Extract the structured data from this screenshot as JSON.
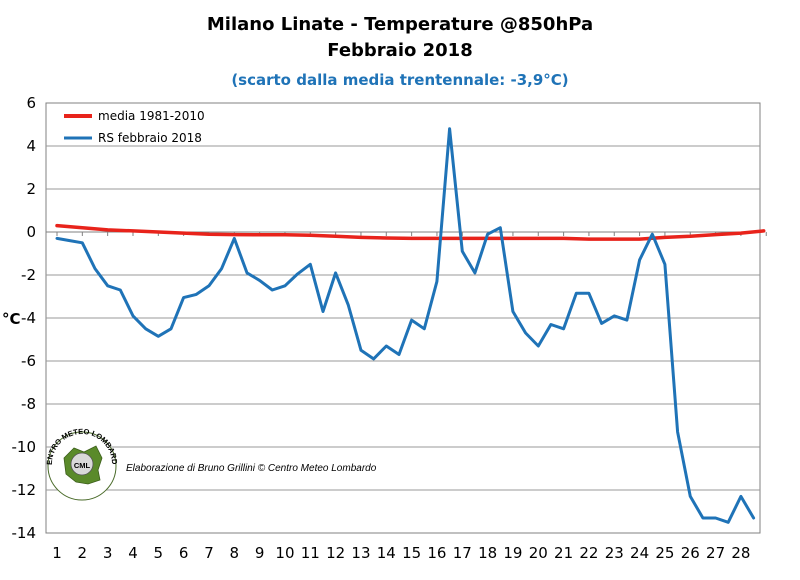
{
  "chart_data": {
    "type": "line",
    "title": "Milano Linate - Temperature @850hPa",
    "title_line2": "Febbraio 2018",
    "subtitle": "(scarto dalla media trentennale: -3,9°C)",
    "ylabel": "°C",
    "xlabel": "",
    "ylim": [
      -14,
      6
    ],
    "yticks": [
      "6",
      "4",
      "2",
      "0",
      "-2",
      "-4",
      "-6",
      "-8",
      "-10",
      "-12",
      "-14"
    ],
    "xlim": [
      1,
      29
    ],
    "xticks": [
      "1",
      "2",
      "3",
      "4",
      "5",
      "6",
      "7",
      "8",
      "9",
      "10",
      "11",
      "12",
      "13",
      "14",
      "15",
      "16",
      "17",
      "18",
      "19",
      "20",
      "21",
      "22",
      "23",
      "24",
      "25",
      "26",
      "27",
      "28"
    ],
    "grid": true,
    "legend_position": "top-left",
    "series": [
      {
        "name": "media 1981-2010",
        "color": "#e8231b",
        "x": [
          1,
          2,
          3,
          4,
          5,
          6,
          7,
          8,
          9,
          10,
          11,
          12,
          13,
          14,
          15,
          16,
          17,
          18,
          19,
          20,
          21,
          22,
          23,
          24,
          25,
          26,
          27,
          28,
          28.9
        ],
        "y": [
          0.3,
          0.2,
          0.1,
          0.05,
          0.0,
          -0.05,
          -0.1,
          -0.12,
          -0.13,
          -0.13,
          -0.15,
          -0.2,
          -0.25,
          -0.28,
          -0.3,
          -0.3,
          -0.3,
          -0.3,
          -0.3,
          -0.3,
          -0.3,
          -0.33,
          -0.33,
          -0.33,
          -0.25,
          -0.2,
          -0.12,
          -0.05,
          0.05
        ]
      },
      {
        "name": "RS febbraio 2018",
        "color": "#1f73b7",
        "x": [
          1,
          1.5,
          2,
          2.5,
          3,
          3.5,
          4,
          4.5,
          5,
          5.5,
          6,
          6.5,
          7,
          7.5,
          8,
          8.5,
          9,
          9.5,
          10,
          10.5,
          11,
          11.5,
          12,
          12.5,
          13,
          13.5,
          14,
          14.5,
          15,
          15.5,
          16,
          16.5,
          17,
          17.5,
          18,
          18.5,
          19,
          19.5,
          20,
          20.5,
          21,
          21.5,
          22,
          22.5,
          23,
          23.5,
          24,
          24.5,
          25,
          25.5,
          26,
          26.5,
          27,
          27.5,
          28,
          28.5
        ],
        "y": [
          -0.3,
          -0.4,
          -0.5,
          -1.7,
          -2.5,
          -2.7,
          -3.9,
          -4.5,
          -4.85,
          -4.5,
          -3.05,
          -2.9,
          -2.5,
          -1.7,
          -0.3,
          -1.9,
          -2.25,
          -2.7,
          -2.5,
          -1.95,
          -1.5,
          -3.7,
          -1.9,
          -3.4,
          -5.5,
          -5.9,
          -5.3,
          -5.7,
          -4.1,
          -4.5,
          -2.3,
          4.8,
          -0.9,
          -1.9,
          -0.1,
          0.2,
          -3.7,
          -4.7,
          -5.3,
          -4.3,
          -4.5,
          -2.85,
          -2.85,
          -4.25,
          -3.9,
          -4.1,
          -1.3,
          -0.1,
          -1.5,
          -9.3,
          -12.3,
          -13.3,
          -13.3,
          -13.5,
          -12.3,
          -13.3
        ]
      }
    ]
  },
  "credit": "Elaborazione di Bruno Grillini © Centro Meteo Lombardo",
  "logo": {
    "initials": "CML",
    "ring_text_top": "CENTRO METEO LOMBARDO",
    "ring_text_bottom": "LOMBARDO"
  }
}
